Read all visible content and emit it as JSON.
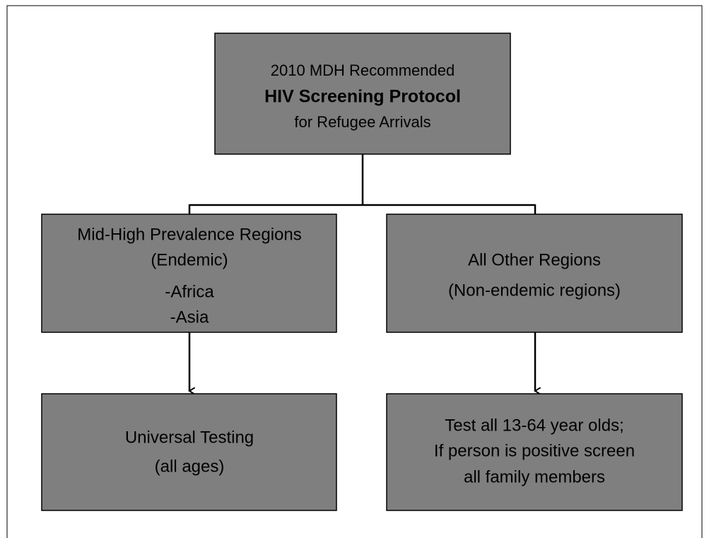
{
  "nodes": [
    {
      "lines": [
        "2010 MDH Recommended",
        "HIV Screening Protocol",
        "for Refugee Arrivals"
      ]
    },
    {
      "lines": [
        "Mid-High Prevalence Regions",
        "(Endemic)",
        "-Africa",
        "-Asia"
      ]
    },
    {
      "lines": [
        "All Other Regions",
        "(Non-endemic regions)"
      ]
    },
    {
      "lines": [
        "Universal Testing",
        "(all ages)"
      ]
    },
    {
      "lines": [
        "Test all 13-64 year olds;",
        "If person is positive screen",
        "all family members"
      ]
    }
  ]
}
